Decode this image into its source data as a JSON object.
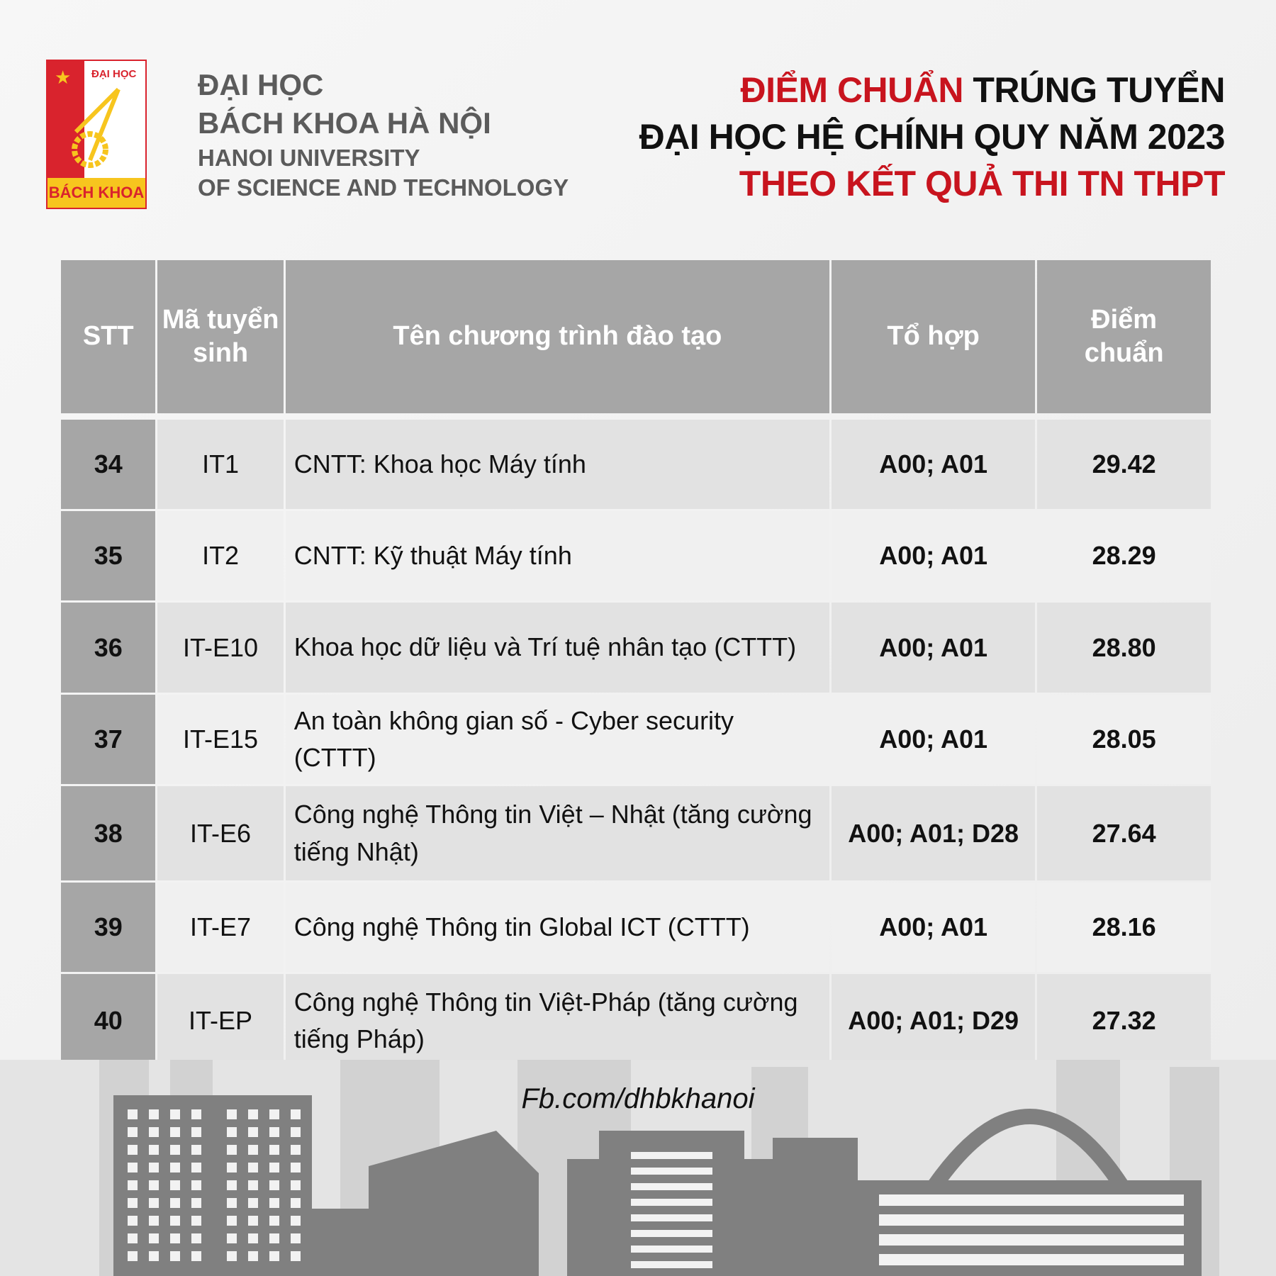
{
  "logo": {
    "top_text": "ĐẠI HỌC",
    "bottom_text": "BÁCH KHOA"
  },
  "university": {
    "line1": "ĐẠI HỌC",
    "line2": "BÁCH KHOA HÀ NỘI",
    "line3": "HANOI UNIVERSITY",
    "line4": "OF SCIENCE AND TECHNOLOGY"
  },
  "title": {
    "line1_red": "ĐIỂM CHUẨN",
    "line1_black": "TRÚNG TUYỂN",
    "line2": "ĐẠI HỌC HỆ CHÍNH QUY NĂM 2023",
    "line3": "THEO KẾT QUẢ THI TN THPT"
  },
  "table": {
    "headers": [
      "STT",
      "Mã tuyển sinh",
      "Tên chương trình đào tạo",
      "Tổ hợp",
      "Điểm chuẩn"
    ],
    "rows": [
      {
        "stt": "34",
        "code": "IT1",
        "name": "CNTT: Khoa học Máy tính",
        "combo": "A00; A01",
        "score": "29.42"
      },
      {
        "stt": "35",
        "code": "IT2",
        "name": "CNTT: Kỹ thuật Máy tính",
        "combo": "A00; A01",
        "score": "28.29"
      },
      {
        "stt": "36",
        "code": "IT-E10",
        "name": "Khoa học dữ liệu và Trí tuệ nhân tạo (CTTT)",
        "combo": "A00; A01",
        "score": "28.80"
      },
      {
        "stt": "37",
        "code": "IT-E15",
        "name": "An toàn không gian số - Cyber security (CTTT)",
        "combo": "A00; A01",
        "score": "28.05"
      },
      {
        "stt": "38",
        "code": "IT-E6",
        "name": "Công nghệ Thông tin Việt – Nhật (tăng cường tiếng Nhật)",
        "combo": "A00; A01; D28",
        "score": "27.64"
      },
      {
        "stt": "39",
        "code": "IT-E7",
        "name": "Công nghệ Thông tin Global ICT (CTTT)",
        "combo": "A00; A01",
        "score": "28.16"
      },
      {
        "stt": "40",
        "code": "IT-EP",
        "name": "Công nghệ Thông tin Việt-Pháp (tăng cường tiếng Pháp)",
        "combo": "A00; A01; D29",
        "score": "27.32"
      }
    ]
  },
  "footer": {
    "facebook": "Fb.com/dhbkhanoi"
  },
  "colors": {
    "red": "#c8141e",
    "header_gray": "#a6a6a6",
    "row_dark": "#e2e2e2",
    "row_light": "#f0f0f0",
    "building": "#808080"
  }
}
